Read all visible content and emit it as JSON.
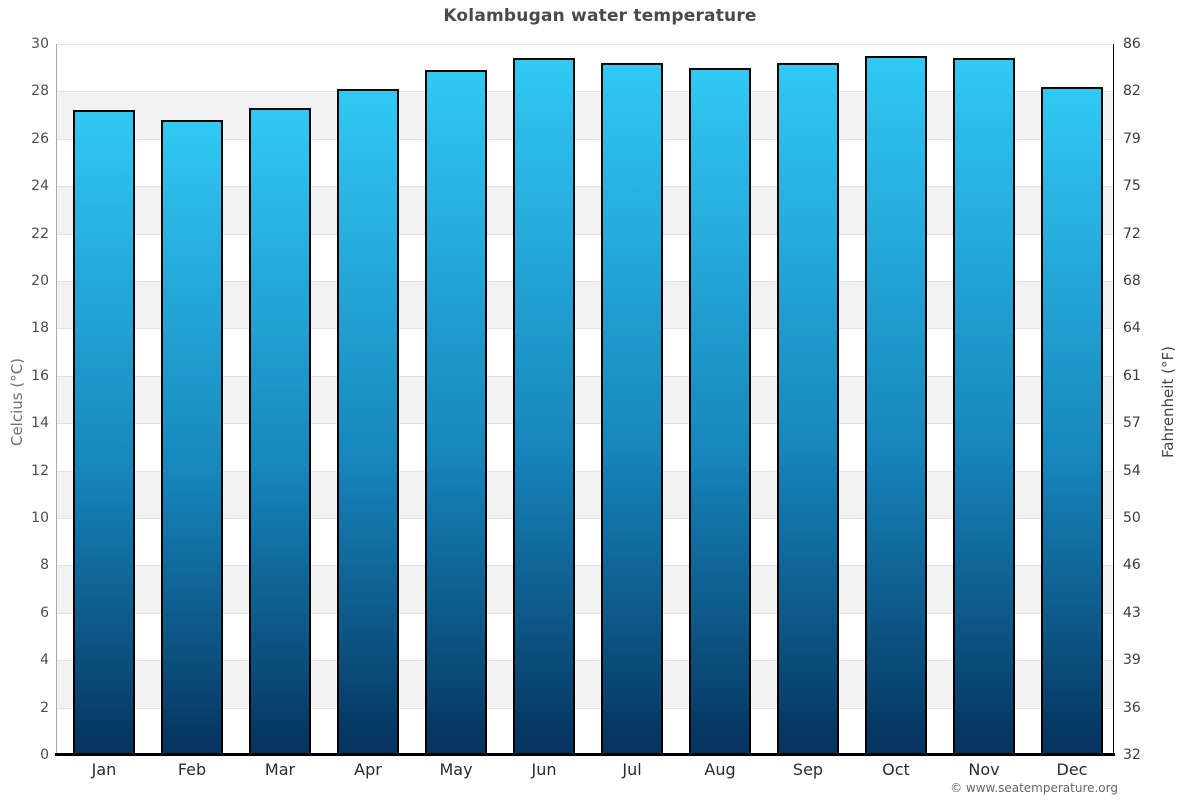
{
  "title": "Kolambugan water temperature",
  "watermark": "© www.seatemperature.org",
  "chart_data": {
    "type": "bar",
    "title": "Kolambugan water temperature",
    "categories": [
      "Jan",
      "Feb",
      "Mar",
      "Apr",
      "May",
      "Jun",
      "Jul",
      "Aug",
      "Sep",
      "Oct",
      "Nov",
      "Dec"
    ],
    "values": [
      27.2,
      26.8,
      27.3,
      28.1,
      28.9,
      29.4,
      29.2,
      29.0,
      29.2,
      29.5,
      29.4,
      28.2
    ],
    "unit": "°C",
    "ylabel_left": "Celcius (°C)",
    "ylabel_right": "Fahrenheit (°F)",
    "ylim": [
      0,
      30
    ],
    "yticks_left": [
      0,
      2,
      4,
      6,
      8,
      10,
      12,
      14,
      16,
      18,
      20,
      22,
      24,
      26,
      28,
      30
    ],
    "yticks_right": [
      "32",
      "36",
      "39",
      "43",
      "46",
      "50",
      "54",
      "57",
      "61",
      "64",
      "68",
      "72",
      "75",
      "79",
      "82",
      "86"
    ],
    "grid": "alternating horizontal bands every 2°C",
    "legend": false,
    "colors": {
      "bar_gradient_top": "#31c8f4",
      "bar_gradient_bottom": "#05335d",
      "bar_border": "#000000",
      "band_alt": "#f2f2f2",
      "gridline": "#e2e2e2",
      "title_text": "#4a4a4a"
    }
  }
}
